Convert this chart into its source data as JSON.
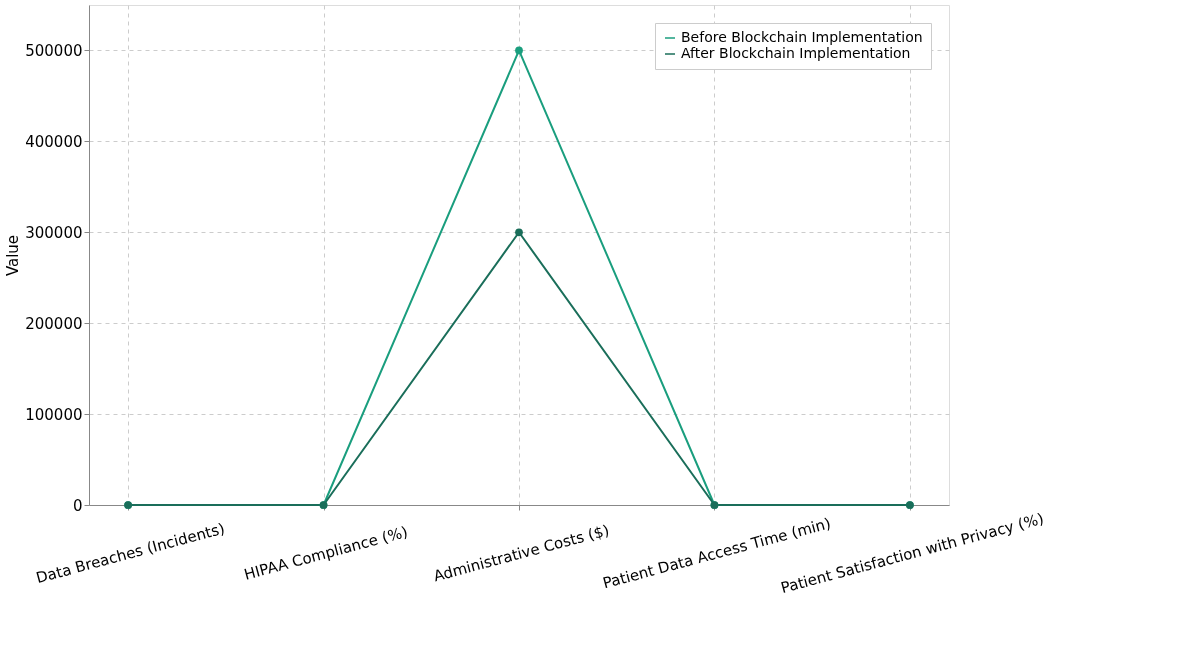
{
  "chart_data": {
    "type": "line",
    "ylabel": "Value",
    "categories": [
      "Data Breaches (Incidents)",
      "HIPAA Compliance (%)",
      "Administrative Costs ($)",
      "Patient Data Access Time (min)",
      "Patient Satisfaction with Privacy (%)"
    ],
    "series": [
      {
        "name": "Before Blockchain Implementation",
        "color": "#1a9e7e",
        "values": [
          0,
          0,
          500000,
          0,
          0
        ]
      },
      {
        "name": "After Blockchain Implementation",
        "color": "#1a6e5a",
        "values": [
          0,
          0,
          300000,
          0,
          0
        ]
      }
    ],
    "ylim": [
      0,
      550000
    ],
    "yticks": [
      0,
      100000,
      200000,
      300000,
      400000,
      500000
    ],
    "grid": true,
    "legend": "top right",
    "marker": "circle",
    "line_style": "solid"
  }
}
